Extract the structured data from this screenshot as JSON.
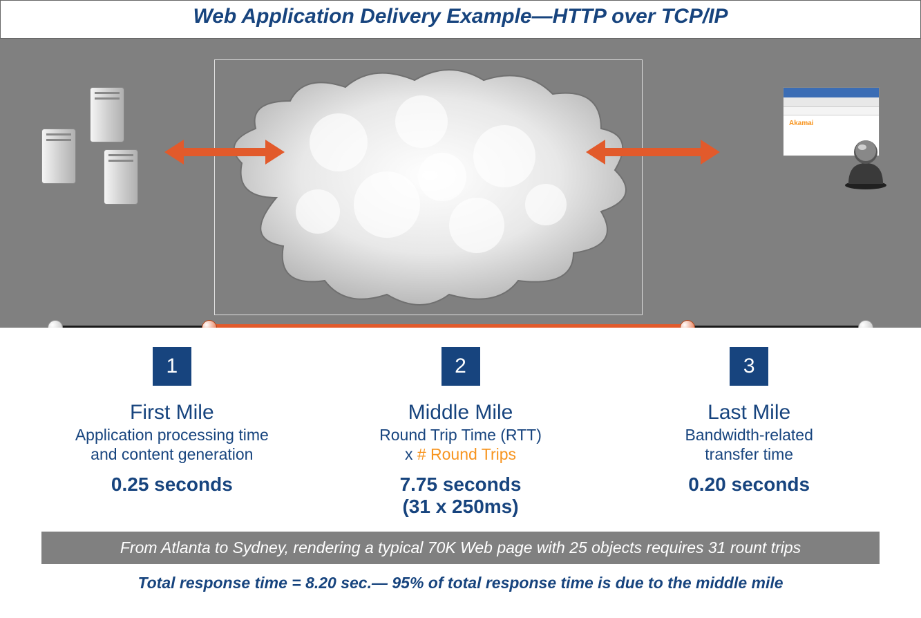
{
  "colors": {
    "primary": "#17447e",
    "accent": "#e25a2b",
    "orange_text": "#f7941e",
    "grey_bg": "#808080",
    "badge_bg": "#17447e"
  },
  "title": "Web Application Delivery Example—HTTP over TCP/IP",
  "diagram": {
    "left_label": "servers",
    "cloud_label": "internet-cloud",
    "right_label": "client-browser",
    "browser_brand": "Akamai"
  },
  "timeline": {
    "orange_start_pct": 19,
    "orange_end_pct": 78,
    "nodes": [
      {
        "pos_pct": 0,
        "kind": "grey"
      },
      {
        "pos_pct": 19,
        "kind": "orange"
      },
      {
        "pos_pct": 78,
        "kind": "orange"
      },
      {
        "pos_pct": 100,
        "kind": "grey"
      }
    ]
  },
  "columns": [
    {
      "num": "1",
      "title": "First Mile",
      "sub_lines": [
        "Application processing time",
        "and content generation"
      ],
      "metric": "0.25 seconds",
      "detail": ""
    },
    {
      "num": "2",
      "title": "Middle Mile",
      "sub_lines": [
        "Round Trip Time (RTT)"
      ],
      "sub_extra_prefix": "x ",
      "sub_extra_orange": "# Round Trips",
      "metric": "7.75 seconds",
      "detail": "(31 x 250ms)"
    },
    {
      "num": "3",
      "title": "Last Mile",
      "sub_lines": [
        "Bandwidth-related",
        "transfer time"
      ],
      "metric": "0.20 seconds",
      "detail": ""
    }
  ],
  "footer_bar": "From Atlanta to Sydney, rendering a typical 70K Web page with 25 objects requires 31 rount trips",
  "footer_line": "Total response time = 8.20 sec.— 95% of total response time is due to the middle mile"
}
